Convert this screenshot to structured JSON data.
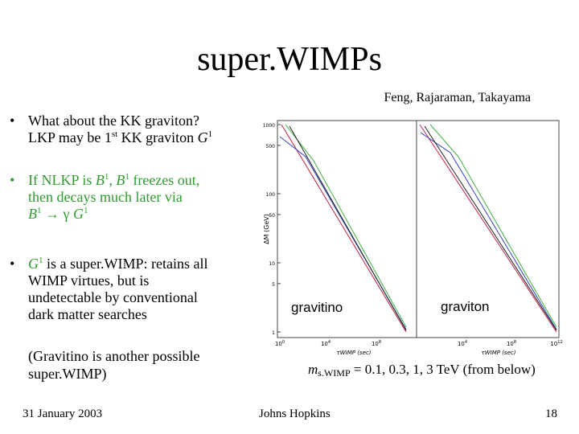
{
  "title": "super.WIMPs",
  "authors": "Feng, Rajaraman, Takayama",
  "bullets": [
    {
      "marker": "•",
      "color": "#000000",
      "lines": [
        [
          {
            "text": "What about the KK graviton?"
          }
        ],
        [
          {
            "text": "LKP may be 1"
          },
          {
            "text": "st",
            "sup": true
          },
          {
            "text": " KK graviton "
          },
          {
            "text": "G",
            "italic": true
          },
          {
            "text": "1",
            "sup": true
          }
        ]
      ]
    },
    {
      "marker": "•",
      "color": "#2f9a2f",
      "lines": [
        [
          {
            "text": "If NLKP is "
          },
          {
            "text": "B",
            "italic": true
          },
          {
            "text": "1",
            "sup": true
          },
          {
            "text": ", "
          },
          {
            "text": "B",
            "italic": true
          },
          {
            "text": "1",
            "sup": true
          },
          {
            "text": " freezes out,"
          }
        ],
        [
          {
            "text": "then decays much later via"
          }
        ],
        [
          {
            "text": "B",
            "italic": true
          },
          {
            "text": "1",
            "sup": true
          },
          {
            "text": " → γ "
          },
          {
            "text": "G",
            "italic": true
          },
          {
            "text": "1",
            "sup": true
          }
        ]
      ]
    },
    {
      "marker": "•",
      "color": "#000000",
      "lines": [
        [
          {
            "text": "G",
            "italic": true,
            "color": "#2f9a2f"
          },
          {
            "text": "1",
            "sup": true,
            "color": "#2f9a2f"
          },
          {
            "text": " is a super.WIMP: retains all"
          }
        ],
        [
          {
            "text": "WIMP virtues, but is"
          }
        ],
        [
          {
            "text": "undetectable by conventional"
          }
        ],
        [
          {
            "text": "dark matter searches"
          }
        ]
      ]
    }
  ],
  "note": [
    "(Gravitino is another possible",
    "super.WIMP)"
  ],
  "figure": {
    "y_axis_label": "ΔM (GeV)",
    "yticks": [
      1000,
      500,
      100,
      50,
      10,
      5,
      1
    ],
    "ylim": [
      1,
      1000
    ],
    "x_axis_label": "τWIMP (sec)",
    "panels": [
      {
        "label": "gravitino",
        "xticks": [
          {
            "base": "10",
            "exp": "0"
          },
          {
            "base": "10",
            "exp": "4"
          },
          {
            "base": "10",
            "exp": "8"
          }
        ]
      },
      {
        "label": "graviton",
        "xticks": [
          {
            "base": "10",
            "exp": "4"
          },
          {
            "base": "10",
            "exp": "8"
          },
          {
            "base": "10",
            "exp": "12"
          }
        ]
      }
    ]
  },
  "caption": [
    {
      "text": "m",
      "italic": true
    },
    {
      "text": "s.WIMP",
      "sub": true
    },
    {
      "text": " = 0.1, 0.3, 1, 3 TeV (from below)"
    }
  ],
  "footer": {
    "date": "31 January 2003",
    "venue": "Johns Hopkins",
    "page": "18"
  }
}
